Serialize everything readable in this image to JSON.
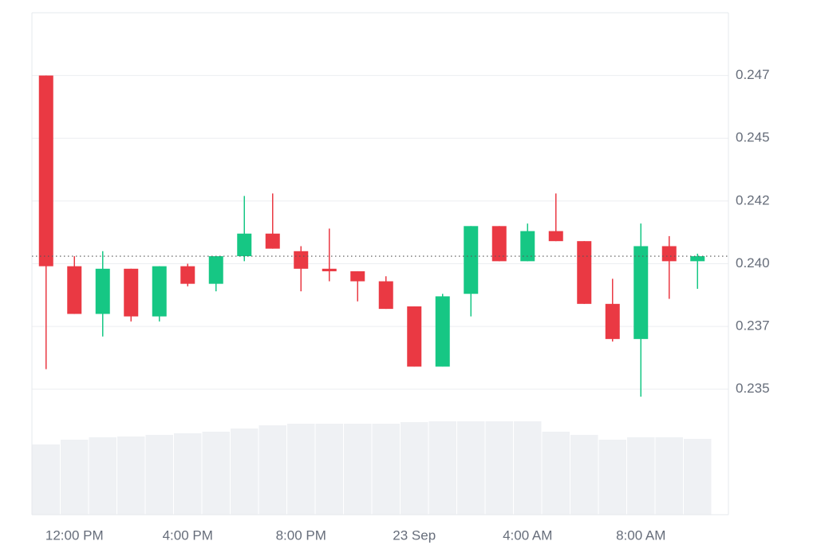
{
  "chart_data": {
    "type": "candlestick",
    "categories": [
      null,
      "12:00 PM",
      null,
      null,
      null,
      "4:00 PM",
      null,
      null,
      null,
      "8:00 PM",
      null,
      null,
      null,
      "23 Sep",
      null,
      null,
      null,
      "4:00 AM",
      null,
      null,
      null,
      "8:00 AM",
      null,
      null
    ],
    "open": [
      0.2475,
      0.2399,
      0.238,
      0.2398,
      0.2379,
      0.2399,
      0.2392,
      0.2403,
      0.2412,
      0.2405,
      0.2398,
      0.2397,
      0.2393,
      0.2383,
      0.2359,
      0.2388,
      0.2415,
      0.2401,
      0.2413,
      0.2409,
      0.2384,
      0.237,
      0.2407,
      0.2401
    ],
    "high": [
      0.2475,
      0.2403,
      0.2405,
      0.2398,
      0.2399,
      0.24,
      0.2403,
      0.2427,
      0.2428,
      0.2407,
      0.2414,
      0.2397,
      0.2395,
      0.2383,
      0.2388,
      0.2415,
      0.2415,
      0.2416,
      0.2428,
      0.2409,
      0.2394,
      0.2416,
      0.2411,
      0.2404
    ],
    "low": [
      0.2358,
      0.238,
      0.2371,
      0.2377,
      0.2377,
      0.2391,
      0.2389,
      0.2401,
      0.2406,
      0.2389,
      0.2393,
      0.2385,
      0.2382,
      0.2359,
      0.2359,
      0.2379,
      0.2401,
      0.2401,
      0.2409,
      0.2384,
      0.2369,
      0.2347,
      0.2386,
      0.239
    ],
    "close": [
      0.2399,
      0.238,
      0.2398,
      0.2379,
      0.2399,
      0.2392,
      0.2403,
      0.2412,
      0.2406,
      0.2398,
      0.2397,
      0.2393,
      0.2382,
      0.2359,
      0.2387,
      0.2415,
      0.2401,
      0.2413,
      0.2409,
      0.2384,
      0.237,
      0.2407,
      0.2401,
      0.2403
    ],
    "volume": [
      88,
      94,
      97,
      98,
      100,
      102,
      104,
      108,
      112,
      114,
      114,
      114,
      114,
      116,
      117,
      117,
      117,
      117,
      104,
      100,
      94,
      97,
      97,
      95
    ],
    "volume_lim": [
      0,
      120
    ],
    "up_color": "#16c784",
    "down_color": "#ea3943",
    "volume_color": "#eff1f4",
    "last_price": 0.2403,
    "ylim": [
      0.23,
      0.25
    ],
    "yticks": [
      {
        "value": 0.2475,
        "label": "0.247"
      },
      {
        "value": 0.245,
        "label": "0.245"
      },
      {
        "value": 0.2425,
        "label": "0.242"
      },
      {
        "value": 0.24,
        "label": "0.240"
      },
      {
        "value": 0.2375,
        "label": "0.237"
      },
      {
        "value": 0.235,
        "label": "0.235"
      }
    ],
    "grid": true
  }
}
